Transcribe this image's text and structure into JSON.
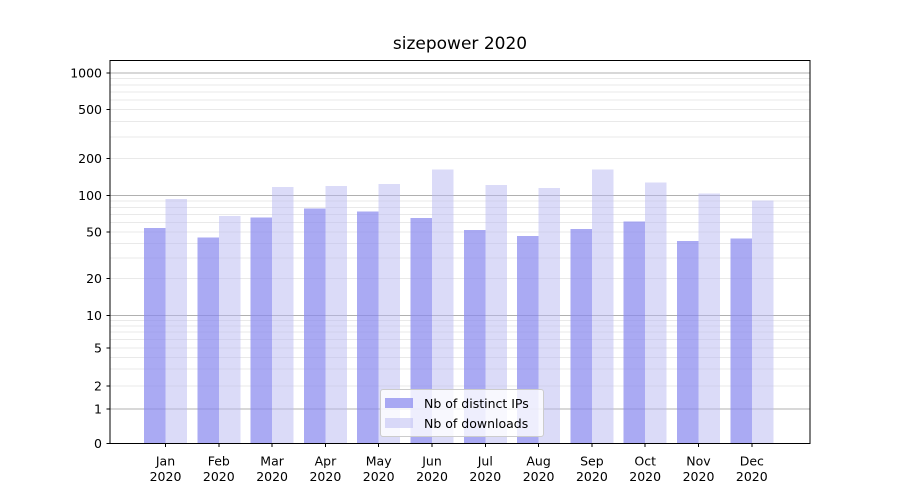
{
  "title": "sizepower 2020",
  "colors": {
    "bar_ips": "rgba(137,137,238,0.72)",
    "bar_downloads": "rgba(183,183,241,0.5)",
    "grid_major": "#b0b0b0",
    "grid_minor": "#e9e9e9",
    "spine": "#000000",
    "tick_text": "#000000",
    "legend_border": "#cccccc"
  },
  "chart_data": {
    "type": "bar",
    "title": "sizepower 2020",
    "categories": [
      "Jan",
      "Feb",
      "Mar",
      "Apr",
      "May",
      "Jun",
      "Jul",
      "Aug",
      "Sep",
      "Oct",
      "Nov",
      "Dec"
    ],
    "x_tick_second_line": "2020",
    "series": [
      {
        "name": "Nb of distinct IPs",
        "values": [
          54,
          45,
          66,
          78,
          74,
          65,
          52,
          46,
          53,
          61,
          42,
          44
        ]
      },
      {
        "name": "Nb of downloads",
        "values": [
          94,
          68,
          117,
          120,
          124,
          163,
          122,
          115,
          163,
          128,
          104,
          91
        ]
      }
    ],
    "yscale": "symlog",
    "y_ticks": [
      0,
      1,
      2,
      5,
      10,
      20,
      50,
      100,
      200,
      500,
      1000
    ],
    "ylim": [
      0,
      1000
    ],
    "xlabel": "",
    "ylabel": "",
    "grid": true,
    "legend_position": "lower center"
  }
}
